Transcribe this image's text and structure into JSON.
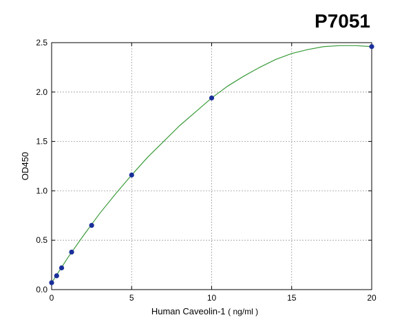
{
  "chart_data": {
    "type": "scatter",
    "title": "P7051",
    "xlabel": "Human Caveolin-1",
    "xlabel_unit": "( ng/ml )",
    "ylabel": "OD450",
    "xlim": [
      0,
      20
    ],
    "ylim": [
      0,
      2.5
    ],
    "x_ticks": [
      "0",
      "5",
      "10",
      "15",
      "20"
    ],
    "y_ticks": [
      "0.0",
      "0.5",
      "1.0",
      "1.5",
      "2.0",
      "2.5"
    ],
    "grid": true,
    "points": {
      "x": [
        0,
        0.3125,
        0.625,
        1.25,
        2.5,
        5,
        10,
        20
      ],
      "y": [
        0.07,
        0.14,
        0.22,
        0.38,
        0.65,
        1.16,
        1.94,
        2.46
      ]
    },
    "fit_curve": {
      "color": "#3a9a3a",
      "x": [
        0,
        1,
        2,
        3,
        4,
        5,
        6,
        7,
        8,
        9,
        10,
        11,
        12,
        13,
        14,
        15,
        16,
        17,
        18,
        19,
        20
      ],
      "y": [
        0.07,
        0.32,
        0.55,
        0.77,
        0.97,
        1.16,
        1.34,
        1.5,
        1.66,
        1.8,
        1.94,
        2.06,
        2.16,
        2.25,
        2.33,
        2.39,
        2.43,
        2.46,
        2.47,
        2.47,
        2.46
      ]
    },
    "point_color": "#1a2f9a"
  }
}
